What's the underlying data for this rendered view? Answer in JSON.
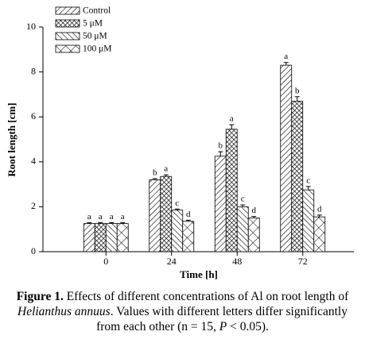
{
  "chart_data": {
    "type": "bar",
    "ylabel": "Root length [cm]",
    "xlabel": "Time [h]",
    "categories": [
      "0",
      "24",
      "48",
      "72"
    ],
    "ylim": [
      0,
      10
    ],
    "yticks": [
      0,
      2,
      4,
      6,
      8,
      10
    ],
    "legend": "upper left",
    "series": [
      {
        "name": "Control",
        "color": "#000000",
        "hatch": "/",
        "values": [
          1.25,
          3.2,
          4.25,
          8.3
        ],
        "errors": [
          0.04,
          0.05,
          0.2,
          0.12
        ],
        "letters": [
          "a",
          "b",
          "b",
          "a"
        ]
      },
      {
        "name": "5 μM",
        "color": "#000000",
        "hatch": "xx",
        "values": [
          1.25,
          3.35,
          5.45,
          6.7
        ],
        "errors": [
          0.04,
          0.07,
          0.2,
          0.2
        ],
        "letters": [
          "a",
          "a",
          "a",
          "b"
        ]
      },
      {
        "name": "50 μM",
        "color": "#000000",
        "hatch": "\\",
        "values": [
          1.25,
          1.85,
          2.0,
          2.75
        ],
        "errors": [
          0.04,
          0.05,
          0.08,
          0.15
        ],
        "letters": [
          "a",
          "c",
          "c",
          "c"
        ]
      },
      {
        "name": "100 μM",
        "color": "#000000",
        "hatch": "x",
        "values": [
          1.25,
          1.35,
          1.5,
          1.55
        ],
        "errors": [
          0.04,
          0.05,
          0.07,
          0.08
        ],
        "letters": [
          "a",
          "d",
          "d",
          "d"
        ]
      }
    ],
    "caption": {
      "label": "Figure 1.",
      "parts": [
        " Effects of different concentrations of Al on root length of ",
        "Helianthus annuus",
        ". Values with different letters differ significantly from each other (n = 15, ",
        "P",
        " < 0.05)."
      ]
    }
  }
}
